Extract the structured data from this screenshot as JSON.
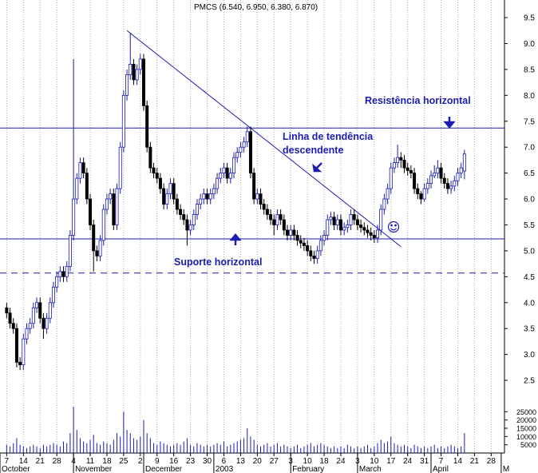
{
  "chart_data": {
    "type": "candlestick",
    "title": "PMCS (6.540, 6.950, 6.380, 6.870)",
    "xlim": [
      -2,
      148.5
    ],
    "ylim": [
      2.1,
      9.84
    ],
    "yticks": [
      2.5,
      {
        "value": 3,
        "label": "3.0"
      },
      3.5,
      {
        "value": 4,
        "label": "4.0"
      },
      4.5,
      {
        "value": 5,
        "label": "5.0"
      },
      5.5,
      {
        "value": 6,
        "label": "6.0"
      },
      6.5,
      {
        "value": 7,
        "label": "7.0"
      },
      7.5,
      {
        "value": 8,
        "label": "8.0"
      },
      8.5,
      {
        "value": 9,
        "label": "9.0"
      },
      9.5
    ],
    "xticks": [
      {
        "value": 0,
        "label": "7"
      },
      {
        "value": 5,
        "label": "14"
      },
      {
        "value": 10,
        "label": "21"
      },
      {
        "value": 15,
        "label": "28"
      },
      {
        "value": 20,
        "label": "4"
      },
      {
        "value": 25,
        "label": "11"
      },
      {
        "value": 30,
        "label": "18"
      },
      {
        "value": 35,
        "label": "25"
      },
      {
        "value": 40,
        "label": "2"
      },
      {
        "value": 45,
        "label": "9"
      },
      {
        "value": 50,
        "label": "16"
      },
      {
        "value": 55,
        "label": "23"
      },
      {
        "value": 60,
        "label": "30"
      },
      {
        "value": 65,
        "label": "6"
      },
      {
        "value": 70,
        "label": "13"
      },
      {
        "value": 75,
        "label": "20"
      },
      {
        "value": 80,
        "label": "27"
      },
      {
        "value": 85,
        "label": "3"
      },
      {
        "value": 90,
        "label": "10"
      },
      {
        "value": 95,
        "label": "18"
      },
      {
        "value": 100,
        "label": "24"
      },
      {
        "value": 105,
        "label": "3"
      },
      {
        "value": 110,
        "label": "10"
      },
      {
        "value": 115,
        "label": "17"
      },
      {
        "value": 120,
        "label": "24"
      },
      {
        "value": 125,
        "label": "31"
      },
      {
        "value": 130,
        "label": "7"
      },
      {
        "value": 135,
        "label": "14"
      },
      {
        "value": 140,
        "label": "21"
      },
      {
        "value": 145,
        "label": "28"
      }
    ],
    "months": [
      {
        "value": -2,
        "label": "October"
      },
      {
        "value": 20,
        "label": "November"
      },
      {
        "value": 41,
        "label": "December"
      },
      {
        "value": 62,
        "label": "2003"
      },
      {
        "value": 85,
        "label": "February"
      },
      {
        "value": 105,
        "label": "March"
      },
      {
        "value": 127,
        "label": "April"
      },
      {
        "value": 148,
        "label": "M"
      }
    ],
    "up_color": "#1c1cb0",
    "down_color": "#000000",
    "line_color": "#1c1cb0",
    "ohlc": [
      [
        3.9,
        4.0,
        3.7,
        3.8
      ],
      [
        3.8,
        3.9,
        3.5,
        3.6
      ],
      [
        3.6,
        3.7,
        3.4,
        3.5
      ],
      [
        3.5,
        3.6,
        2.75,
        2.85
      ],
      [
        2.85,
        2.95,
        2.7,
        2.8
      ],
      [
        2.8,
        3.4,
        2.7,
        3.3
      ],
      [
        3.3,
        3.6,
        3.2,
        3.5
      ],
      [
        3.5,
        3.7,
        3.4,
        3.6
      ],
      [
        3.6,
        4.0,
        3.5,
        3.9
      ],
      [
        3.9,
        4.1,
        3.8,
        4.0
      ],
      [
        4.0,
        4.1,
        3.6,
        3.7
      ],
      [
        3.7,
        3.8,
        3.3,
        3.5
      ],
      [
        3.5,
        3.8,
        3.4,
        3.7
      ],
      [
        3.7,
        4.1,
        3.6,
        4.0
      ],
      [
        4.0,
        4.4,
        3.9,
        4.3
      ],
      [
        4.3,
        4.6,
        4.2,
        4.5
      ],
      [
        4.5,
        4.7,
        4.4,
        4.6
      ],
      [
        4.6,
        4.7,
        4.4,
        4.5
      ],
      [
        4.5,
        4.8,
        4.4,
        4.7
      ],
      [
        4.7,
        5.4,
        4.6,
        5.3
      ],
      [
        5.3,
        8.7,
        5.2,
        6.0
      ],
      [
        6.0,
        6.5,
        5.9,
        6.4
      ],
      [
        6.4,
        6.8,
        6.3,
        6.7
      ],
      [
        6.7,
        6.8,
        6.4,
        6.5
      ],
      [
        6.5,
        6.6,
        5.9,
        6.0
      ],
      [
        6.0,
        6.1,
        5.4,
        5.5
      ],
      [
        5.5,
        5.6,
        4.6,
        5.0
      ],
      [
        5.0,
        5.1,
        4.8,
        4.9
      ],
      [
        4.9,
        5.3,
        4.8,
        5.2
      ],
      [
        5.2,
        5.9,
        5.1,
        5.8
      ],
      [
        5.8,
        6.1,
        5.7,
        6.0
      ],
      [
        6.0,
        6.2,
        5.9,
        6.1
      ],
      [
        6.1,
        6.2,
        5.4,
        5.5
      ],
      [
        5.5,
        6.3,
        5.4,
        6.2
      ],
      [
        6.2,
        7.1,
        6.1,
        7.0
      ],
      [
        7.0,
        8.1,
        6.9,
        8.0
      ],
      [
        8.0,
        8.5,
        7.9,
        8.4
      ],
      [
        8.4,
        9.2,
        8.3,
        8.6
      ],
      [
        8.6,
        8.7,
        8.2,
        8.3
      ],
      [
        8.3,
        8.6,
        8.2,
        8.5
      ],
      [
        8.5,
        8.8,
        8.4,
        8.7
      ],
      [
        8.7,
        8.8,
        7.7,
        7.8
      ],
      [
        7.8,
        7.9,
        6.9,
        7.0
      ],
      [
        7.0,
        7.1,
        6.5,
        6.6
      ],
      [
        6.6,
        6.7,
        6.4,
        6.5
      ],
      [
        6.5,
        6.6,
        6.3,
        6.4
      ],
      [
        6.4,
        6.5,
        6.1,
        6.2
      ],
      [
        6.2,
        6.3,
        5.8,
        5.9
      ],
      [
        5.9,
        6.2,
        5.8,
        6.1
      ],
      [
        6.1,
        6.4,
        6.0,
        6.3
      ],
      [
        6.3,
        6.4,
        5.9,
        6.0
      ],
      [
        6.0,
        6.1,
        5.7,
        5.8
      ],
      [
        5.8,
        5.9,
        5.6,
        5.7
      ],
      [
        5.7,
        5.8,
        5.5,
        5.6
      ],
      [
        5.6,
        5.7,
        5.1,
        5.4
      ],
      [
        5.4,
        5.6,
        5.3,
        5.5
      ],
      [
        5.5,
        5.8,
        5.4,
        5.7
      ],
      [
        5.7,
        6.0,
        5.6,
        5.9
      ],
      [
        5.9,
        6.1,
        5.8,
        6.0
      ],
      [
        6.0,
        6.2,
        5.9,
        6.1
      ],
      [
        6.1,
        6.2,
        5.9,
        6.0
      ],
      [
        6.0,
        6.2,
        5.9,
        6.1
      ],
      [
        6.1,
        6.3,
        6.0,
        6.2
      ],
      [
        6.2,
        6.5,
        6.1,
        6.4
      ],
      [
        6.4,
        6.6,
        6.3,
        6.5
      ],
      [
        6.5,
        6.7,
        6.4,
        6.6
      ],
      [
        6.6,
        6.7,
        6.3,
        6.4
      ],
      [
        6.4,
        6.6,
        6.3,
        6.5
      ],
      [
        6.5,
        6.9,
        6.4,
        6.8
      ],
      [
        6.8,
        7.0,
        6.7,
        6.9
      ],
      [
        6.9,
        7.1,
        6.8,
        7.0
      ],
      [
        7.0,
        7.2,
        6.9,
        7.1
      ],
      [
        7.1,
        7.4,
        7.0,
        7.3
      ],
      [
        7.3,
        7.4,
        6.4,
        6.5
      ],
      [
        6.5,
        6.6,
        5.9,
        6.0
      ],
      [
        6.0,
        6.2,
        5.9,
        6.1
      ],
      [
        6.1,
        6.2,
        5.8,
        5.9
      ],
      [
        5.9,
        6.0,
        5.7,
        5.8
      ],
      [
        5.8,
        5.9,
        5.6,
        5.7
      ],
      [
        5.7,
        5.8,
        5.5,
        5.6
      ],
      [
        5.6,
        5.7,
        5.3,
        5.5
      ],
      [
        5.5,
        5.8,
        5.4,
        5.7
      ],
      [
        5.7,
        5.8,
        5.5,
        5.6
      ],
      [
        5.6,
        5.7,
        5.3,
        5.4
      ],
      [
        5.4,
        5.5,
        5.2,
        5.3
      ],
      [
        5.3,
        5.5,
        5.2,
        5.4
      ],
      [
        5.4,
        5.5,
        5.2,
        5.3
      ],
      [
        5.3,
        5.4,
        5.1,
        5.2
      ],
      [
        5.2,
        5.3,
        5.05,
        5.15
      ],
      [
        5.15,
        5.25,
        5.0,
        5.1
      ],
      [
        5.1,
        5.2,
        4.9,
        5.0
      ],
      [
        5.0,
        5.1,
        4.8,
        4.9
      ],
      [
        4.9,
        5.0,
        4.75,
        4.85
      ],
      [
        4.85,
        5.1,
        4.75,
        5.0
      ],
      [
        5.0,
        5.3,
        4.9,
        5.2
      ],
      [
        5.2,
        5.4,
        5.1,
        5.3
      ],
      [
        5.3,
        5.7,
        5.2,
        5.6
      ],
      [
        5.6,
        5.75,
        5.5,
        5.65
      ],
      [
        5.65,
        5.75,
        5.4,
        5.5
      ],
      [
        5.5,
        5.7,
        5.4,
        5.6
      ],
      [
        5.6,
        5.7,
        5.3,
        5.4
      ],
      [
        5.4,
        5.55,
        5.3,
        5.45
      ],
      [
        5.45,
        5.6,
        5.35,
        5.5
      ],
      [
        5.5,
        5.8,
        5.4,
        5.7
      ],
      [
        5.7,
        5.8,
        5.5,
        5.6
      ],
      [
        5.6,
        5.7,
        5.4,
        5.5
      ],
      [
        5.5,
        5.6,
        5.35,
        5.45
      ],
      [
        5.45,
        5.55,
        5.3,
        5.4
      ],
      [
        5.4,
        5.5,
        5.25,
        5.35
      ],
      [
        5.35,
        5.45,
        5.2,
        5.3
      ],
      [
        5.3,
        5.4,
        5.15,
        5.25
      ],
      [
        5.25,
        5.5,
        5.15,
        5.4
      ],
      [
        5.4,
        5.9,
        5.3,
        5.8
      ],
      [
        5.8,
        6.1,
        5.7,
        6.0
      ],
      [
        6.0,
        6.3,
        5.9,
        6.2
      ],
      [
        6.2,
        6.7,
        6.1,
        6.6
      ],
      [
        6.6,
        6.8,
        6.5,
        6.7
      ],
      [
        6.7,
        7.05,
        6.6,
        6.8
      ],
      [
        6.8,
        6.9,
        6.6,
        6.75
      ],
      [
        6.75,
        6.85,
        6.5,
        6.6
      ],
      [
        6.6,
        6.7,
        6.45,
        6.55
      ],
      [
        6.55,
        6.65,
        6.4,
        6.5
      ],
      [
        6.5,
        6.6,
        6.1,
        6.2
      ],
      [
        6.2,
        6.3,
        6.0,
        6.1
      ],
      [
        6.1,
        6.15,
        5.9,
        6.0
      ],
      [
        6.0,
        6.3,
        5.95,
        6.2
      ],
      [
        6.2,
        6.4,
        6.1,
        6.3
      ],
      [
        6.3,
        6.55,
        6.2,
        6.45
      ],
      [
        6.45,
        6.65,
        6.4,
        6.5
      ],
      [
        6.5,
        6.75,
        6.4,
        6.6
      ],
      [
        6.6,
        6.7,
        6.3,
        6.4
      ],
      [
        6.4,
        6.5,
        6.2,
        6.3
      ],
      [
        6.3,
        6.4,
        6.1,
        6.2
      ],
      [
        6.2,
        6.35,
        6.1,
        6.25
      ],
      [
        6.25,
        6.45,
        6.15,
        6.35
      ],
      [
        6.35,
        6.6,
        6.25,
        6.5
      ],
      [
        6.5,
        6.7,
        6.4,
        6.6
      ],
      [
        6.54,
        6.95,
        6.38,
        6.87
      ]
    ],
    "volume": [
      5000,
      4000,
      6000,
      9000,
      5000,
      4000,
      3000,
      4000,
      5000,
      4000,
      3000,
      5000,
      4000,
      5000,
      6000,
      5000,
      4000,
      7000,
      6000,
      12000,
      28000,
      14000,
      9000,
      7000,
      6000,
      8000,
      11000,
      6000,
      5000,
      7000,
      6000,
      5000,
      8000,
      12000,
      10000,
      25000,
      14000,
      12000,
      9000,
      8000,
      10000,
      20000,
      12000,
      9000,
      6000,
      5000,
      7000,
      6000,
      5000,
      4000,
      5000,
      6000,
      5000,
      7000,
      9000,
      5000,
      4000,
      6000,
      5000,
      4000,
      5000,
      4000,
      5000,
      6000,
      5000,
      7000,
      4000,
      5000,
      6000,
      7000,
      8000,
      9000,
      15000,
      10000,
      8000,
      5000,
      4000,
      5000,
      6000,
      4000,
      5000,
      6000,
      4000,
      5000,
      4000,
      3000,
      4000,
      5000,
      3000,
      4000,
      5000,
      6000,
      4000,
      5000,
      6000,
      5000,
      4000,
      3000,
      4000,
      3000,
      4000,
      3000,
      5000,
      4000,
      3000,
      4000,
      3000,
      4000,
      5000,
      3000,
      4000,
      6000,
      8000,
      6000,
      7000,
      10000,
      6000,
      5000,
      4000,
      5000,
      4000,
      3000,
      5000,
      4000,
      3000,
      4000,
      3000,
      4000,
      5000,
      3000,
      4000,
      3000,
      4000,
      5000,
      4000,
      3000,
      4000,
      12000
    ],
    "vlim": [
      0,
      30000
    ],
    "vticks": [
      5000,
      10000,
      15000,
      20000,
      25000
    ],
    "hlines": [
      {
        "value": 7.37,
        "dashed": false
      },
      {
        "value": 5.23,
        "dashed": false
      },
      {
        "value": 4.57,
        "dashed": true
      }
    ],
    "trendline": {
      "x": [
        36,
        118
      ],
      "y": [
        9.25,
        5.08
      ]
    },
    "annotations": {
      "resistance": "Resistência horizontal",
      "trend_1": "Linha de tendência",
      "trend_2": "descendente",
      "support": "Suporte horizontal"
    }
  }
}
